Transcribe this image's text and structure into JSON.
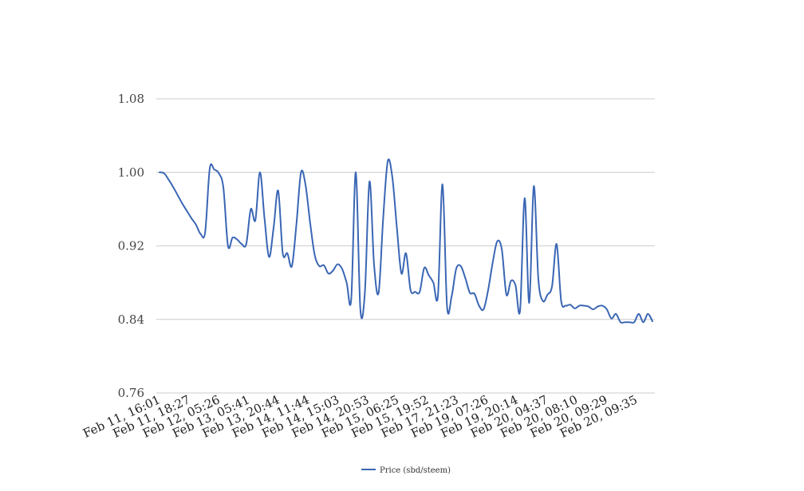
{
  "chart_data": {
    "type": "line",
    "title": "",
    "xlabel": "",
    "ylabel": "",
    "ylim": [
      0.76,
      1.08
    ],
    "yticks": [
      "1.08",
      "1.00",
      "0.92",
      "0.84",
      "0.76"
    ],
    "ytick_values": [
      1.08,
      1.0,
      0.92,
      0.84,
      0.76
    ],
    "xtick_labels": [
      "Feb 11, 16:01",
      "Feb 11, 18:27",
      "Feb 12, 05:26",
      "Feb 13, 05:41",
      "Feb 13, 20:44",
      "Feb 14, 11:44",
      "Feb 14, 15:03",
      "Feb 14, 20:53",
      "Feb 15, 06:25",
      "Feb 15, 19:52",
      "Feb 17, 21:23",
      "Feb 19, 07:26",
      "Feb 19, 20:14",
      "Feb 20, 04:37",
      "Feb 20, 08:10",
      "Feb 20, 09:29",
      "Feb 20, 09:35"
    ],
    "grid": true,
    "legend_position": "bottom",
    "series": [
      {
        "name": "Price (sbd/steem)",
        "color": "#3a66b4",
        "values": [
          1.0,
          0.999,
          0.992,
          0.984,
          0.975,
          0.966,
          0.958,
          0.95,
          0.943,
          0.933,
          0.935,
          1.004,
          1.003,
          0.999,
          0.983,
          0.92,
          0.929,
          0.927,
          0.922,
          0.922,
          0.96,
          0.948,
          1.0,
          0.95,
          0.908,
          0.94,
          0.98,
          0.912,
          0.912,
          0.898,
          0.944,
          1.0,
          0.986,
          0.945,
          0.91,
          0.898,
          0.899,
          0.89,
          0.893,
          0.9,
          0.895,
          0.88,
          0.862,
          1.0,
          0.851,
          0.87,
          0.99,
          0.9,
          0.869,
          0.95,
          1.012,
          0.995,
          0.94,
          0.89,
          0.912,
          0.872,
          0.87,
          0.87,
          0.896,
          0.888,
          0.88,
          0.866,
          0.987,
          0.854,
          0.865,
          0.895,
          0.898,
          0.885,
          0.869,
          0.868,
          0.855,
          0.851,
          0.872,
          0.902,
          0.925,
          0.916,
          0.867,
          0.882,
          0.877,
          0.85,
          0.972,
          0.858,
          0.985,
          0.884,
          0.86,
          0.867,
          0.876,
          0.922,
          0.86,
          0.855,
          0.856,
          0.852,
          0.855,
          0.855,
          0.854,
          0.851,
          0.854,
          0.855,
          0.851,
          0.841,
          0.846,
          0.837,
          0.837,
          0.837,
          0.837,
          0.846,
          0.837,
          0.846,
          0.838
        ]
      }
    ]
  }
}
